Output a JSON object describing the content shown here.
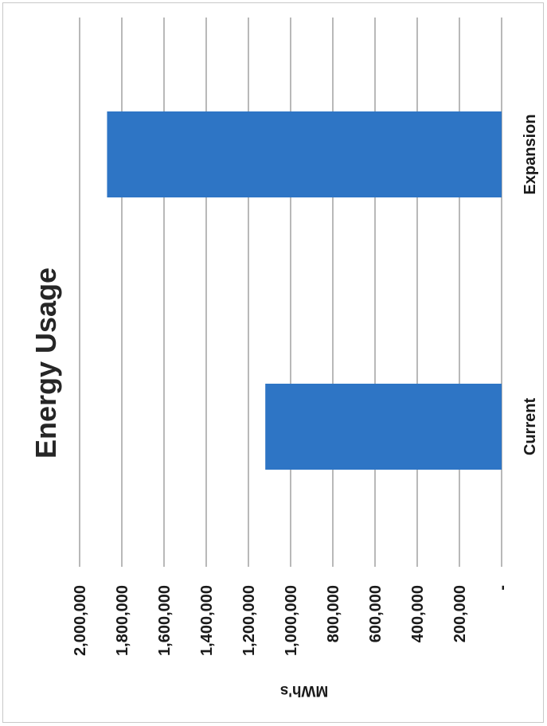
{
  "chart_data": {
    "type": "bar",
    "orientation": "horizontal",
    "title": "Energy Usage",
    "xlabel": "",
    "ylabel": "MWh's",
    "categories": [
      "Current",
      "Expansion"
    ],
    "series": [
      {
        "values": [
          1120000,
          1870000
        ]
      }
    ],
    "ylim": [
      0,
      2000000
    ],
    "tick_values": [
      0,
      200000,
      400000,
      600000,
      800000,
      1000000,
      1200000,
      1400000,
      1600000,
      1800000,
      2000000
    ],
    "tick_labels": [
      "-",
      "200,000",
      "400,000",
      "600,000",
      "800,000",
      "1,000,000",
      "1,200,000",
      "1,400,000",
      "1,600,000",
      "1,800,000",
      "2,000,000"
    ],
    "grid": true,
    "legend": false,
    "bar_color": "#2e75c5",
    "gridline_color": "#8a8a8a",
    "rotation": "page rotated 90 degrees counter-clockwise"
  }
}
